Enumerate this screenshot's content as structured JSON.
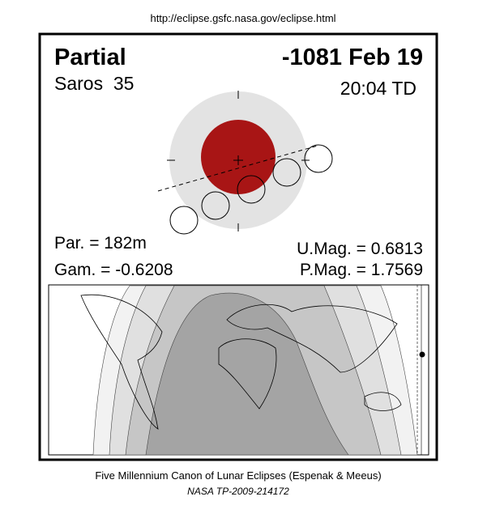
{
  "header": {
    "url": "http://eclipse.gsfc.nasa.gov/eclipse.html"
  },
  "eclipse": {
    "type": "Partial",
    "date": "-1081 Feb 19",
    "saros": "Saros  35",
    "time": "20:04 TD",
    "parameters": {
      "par": "Par. = 182m",
      "gam": "Gam. = -0.6208",
      "umag": "U.Mag. = 0.6813",
      "pmag": "P.Mag. = 1.7569"
    }
  },
  "footer": {
    "title": "Five Millennium Canon of Lunar Eclipses (Espenak & Meeus)",
    "reference": "NASA TP-2009-214172"
  }
}
